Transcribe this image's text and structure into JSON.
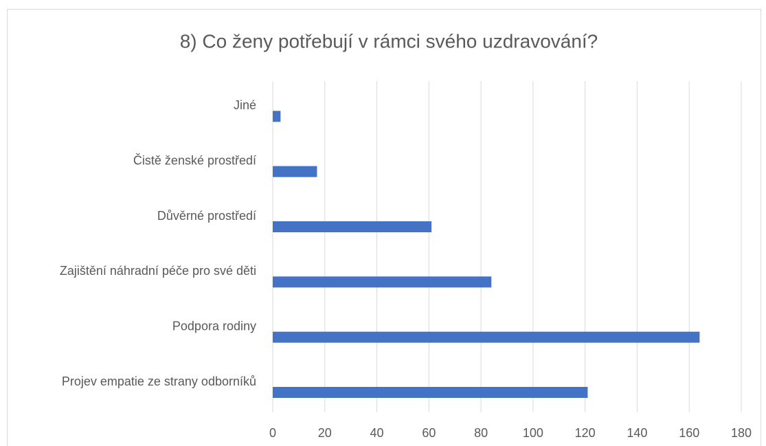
{
  "chart_data": {
    "type": "bar",
    "orientation": "horizontal",
    "title": "8) Co ženy potřebují v rámci svého uzdravování?",
    "categories": [
      "Jiné",
      "Čistě ženské prostředí",
      "Důvěrné prostředí",
      "Zajištění náhradní péče pro své děti",
      "Podpora rodiny",
      "Projev empatie ze strany odborníků"
    ],
    "values": [
      3,
      17,
      61,
      84,
      164,
      121
    ],
    "color": "#4472c4",
    "xlim": [
      0,
      180
    ],
    "xticks": [
      0,
      20,
      40,
      60,
      80,
      100,
      120,
      140,
      160,
      180
    ],
    "grid": true
  }
}
